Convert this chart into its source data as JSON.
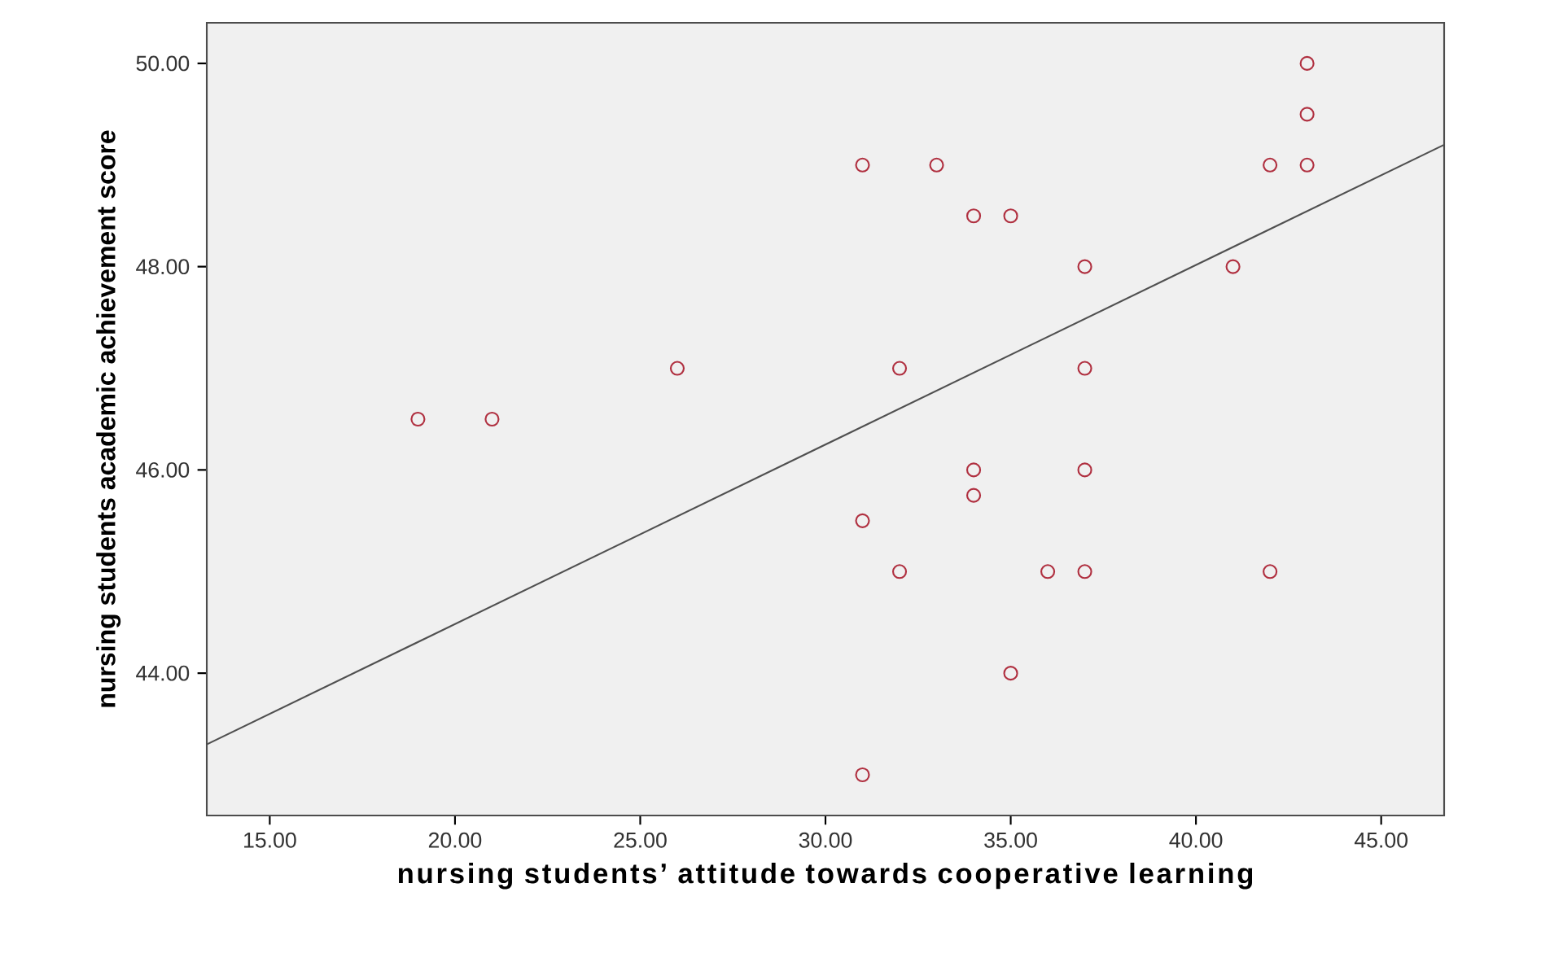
{
  "chart_data": {
    "type": "scatter",
    "xlabel": "nursing students’ attitude towards cooperative learning",
    "ylabel": "nursing students academic achievement score",
    "xlim": [
      13.3,
      46.7
    ],
    "ylim": [
      42.6,
      50.4
    ],
    "xticks": [
      {
        "value": 15,
        "label": "15.00"
      },
      {
        "value": 20,
        "label": "20.00"
      },
      {
        "value": 25,
        "label": "25.00"
      },
      {
        "value": 30,
        "label": "30.00"
      },
      {
        "value": 35,
        "label": "35.00"
      },
      {
        "value": 40,
        "label": "40.00"
      },
      {
        "value": 45,
        "label": "45.00"
      }
    ],
    "yticks": [
      {
        "value": 44,
        "label": "44.00"
      },
      {
        "value": 46,
        "label": "46.00"
      },
      {
        "value": 48,
        "label": "48.00"
      },
      {
        "value": 50,
        "label": "50.00"
      }
    ],
    "grid": false,
    "series": [
      {
        "marker": "circle",
        "color": "#b03040",
        "x": [
          19,
          21,
          26,
          31,
          33,
          34,
          35,
          37,
          41,
          43,
          43,
          42,
          43,
          32,
          37,
          34,
          34,
          37,
          31,
          32,
          36,
          37,
          42,
          35,
          31
        ],
        "values": [
          46.5,
          46.5,
          47,
          49,
          49,
          48.5,
          48.5,
          48,
          48,
          50,
          49.5,
          49,
          49,
          47,
          47,
          46,
          45.75,
          46,
          45.5,
          45,
          45,
          45,
          45,
          44,
          43
        ]
      },
      {
        "type": "line",
        "color": "#505050",
        "x": [
          13.3,
          46.7
        ],
        "values": [
          43.3,
          49.2
        ]
      }
    ]
  }
}
